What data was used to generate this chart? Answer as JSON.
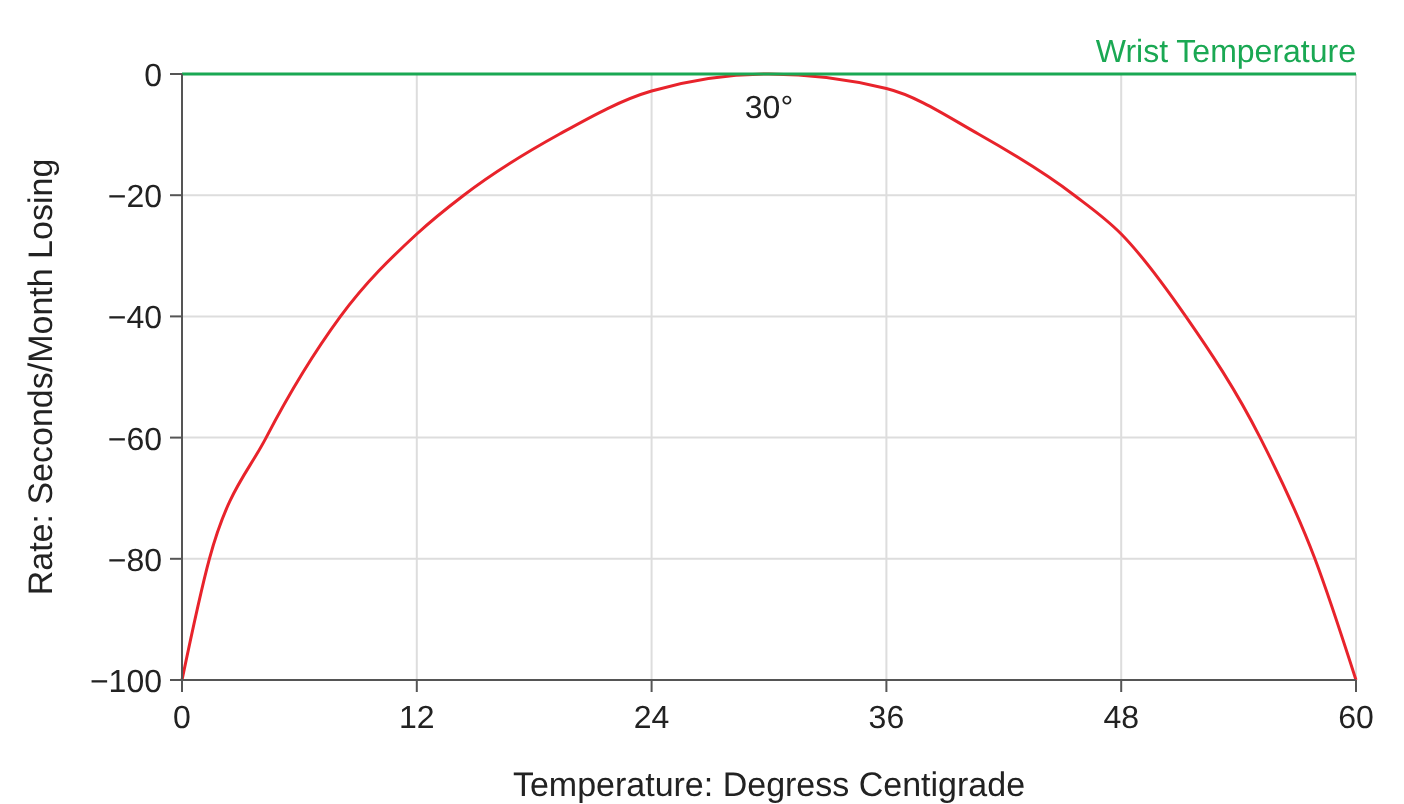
{
  "chart_data": {
    "type": "line",
    "xlabel": "Temperature: Degress Centigrade",
    "ylabel": "Rate: Seconds/Month Losing",
    "x": [
      0,
      1.4,
      4.3,
      8.1,
      12,
      14.4,
      19.3,
      24,
      30,
      36,
      40.7,
      45.6,
      48,
      51.3,
      55.1,
      57.9,
      60
    ],
    "series": [
      {
        "color": "#e8232b",
        "values": [
          -100,
          -80,
          -60,
          -40,
          -26.4,
          -20,
          -9.9,
          -2.8,
          0,
          -2.4,
          -9.9,
          -20,
          -26.4,
          -40,
          -60,
          -80,
          -100
        ]
      }
    ],
    "xlim": [
      0,
      60
    ],
    "xticks": [
      0,
      12,
      24,
      36,
      48,
      60
    ],
    "ylim": [
      -100,
      0
    ],
    "yticks": [
      {
        "value": -100,
        "label": "−100"
      },
      {
        "value": -80,
        "label": "−80"
      },
      {
        "value": -60,
        "label": "−60"
      },
      {
        "value": -40,
        "label": "−40"
      },
      {
        "value": -20,
        "label": "−20"
      },
      0
    ],
    "grid": true,
    "marker": "none",
    "line_style": "solid",
    "ref_lines": [
      {
        "axis": "y",
        "value": 0,
        "label": "Wrist Temperature",
        "color": "#1aa853"
      }
    ],
    "annotations": [
      {
        "text": "30°",
        "x": 30,
        "y": 0
      }
    ]
  }
}
